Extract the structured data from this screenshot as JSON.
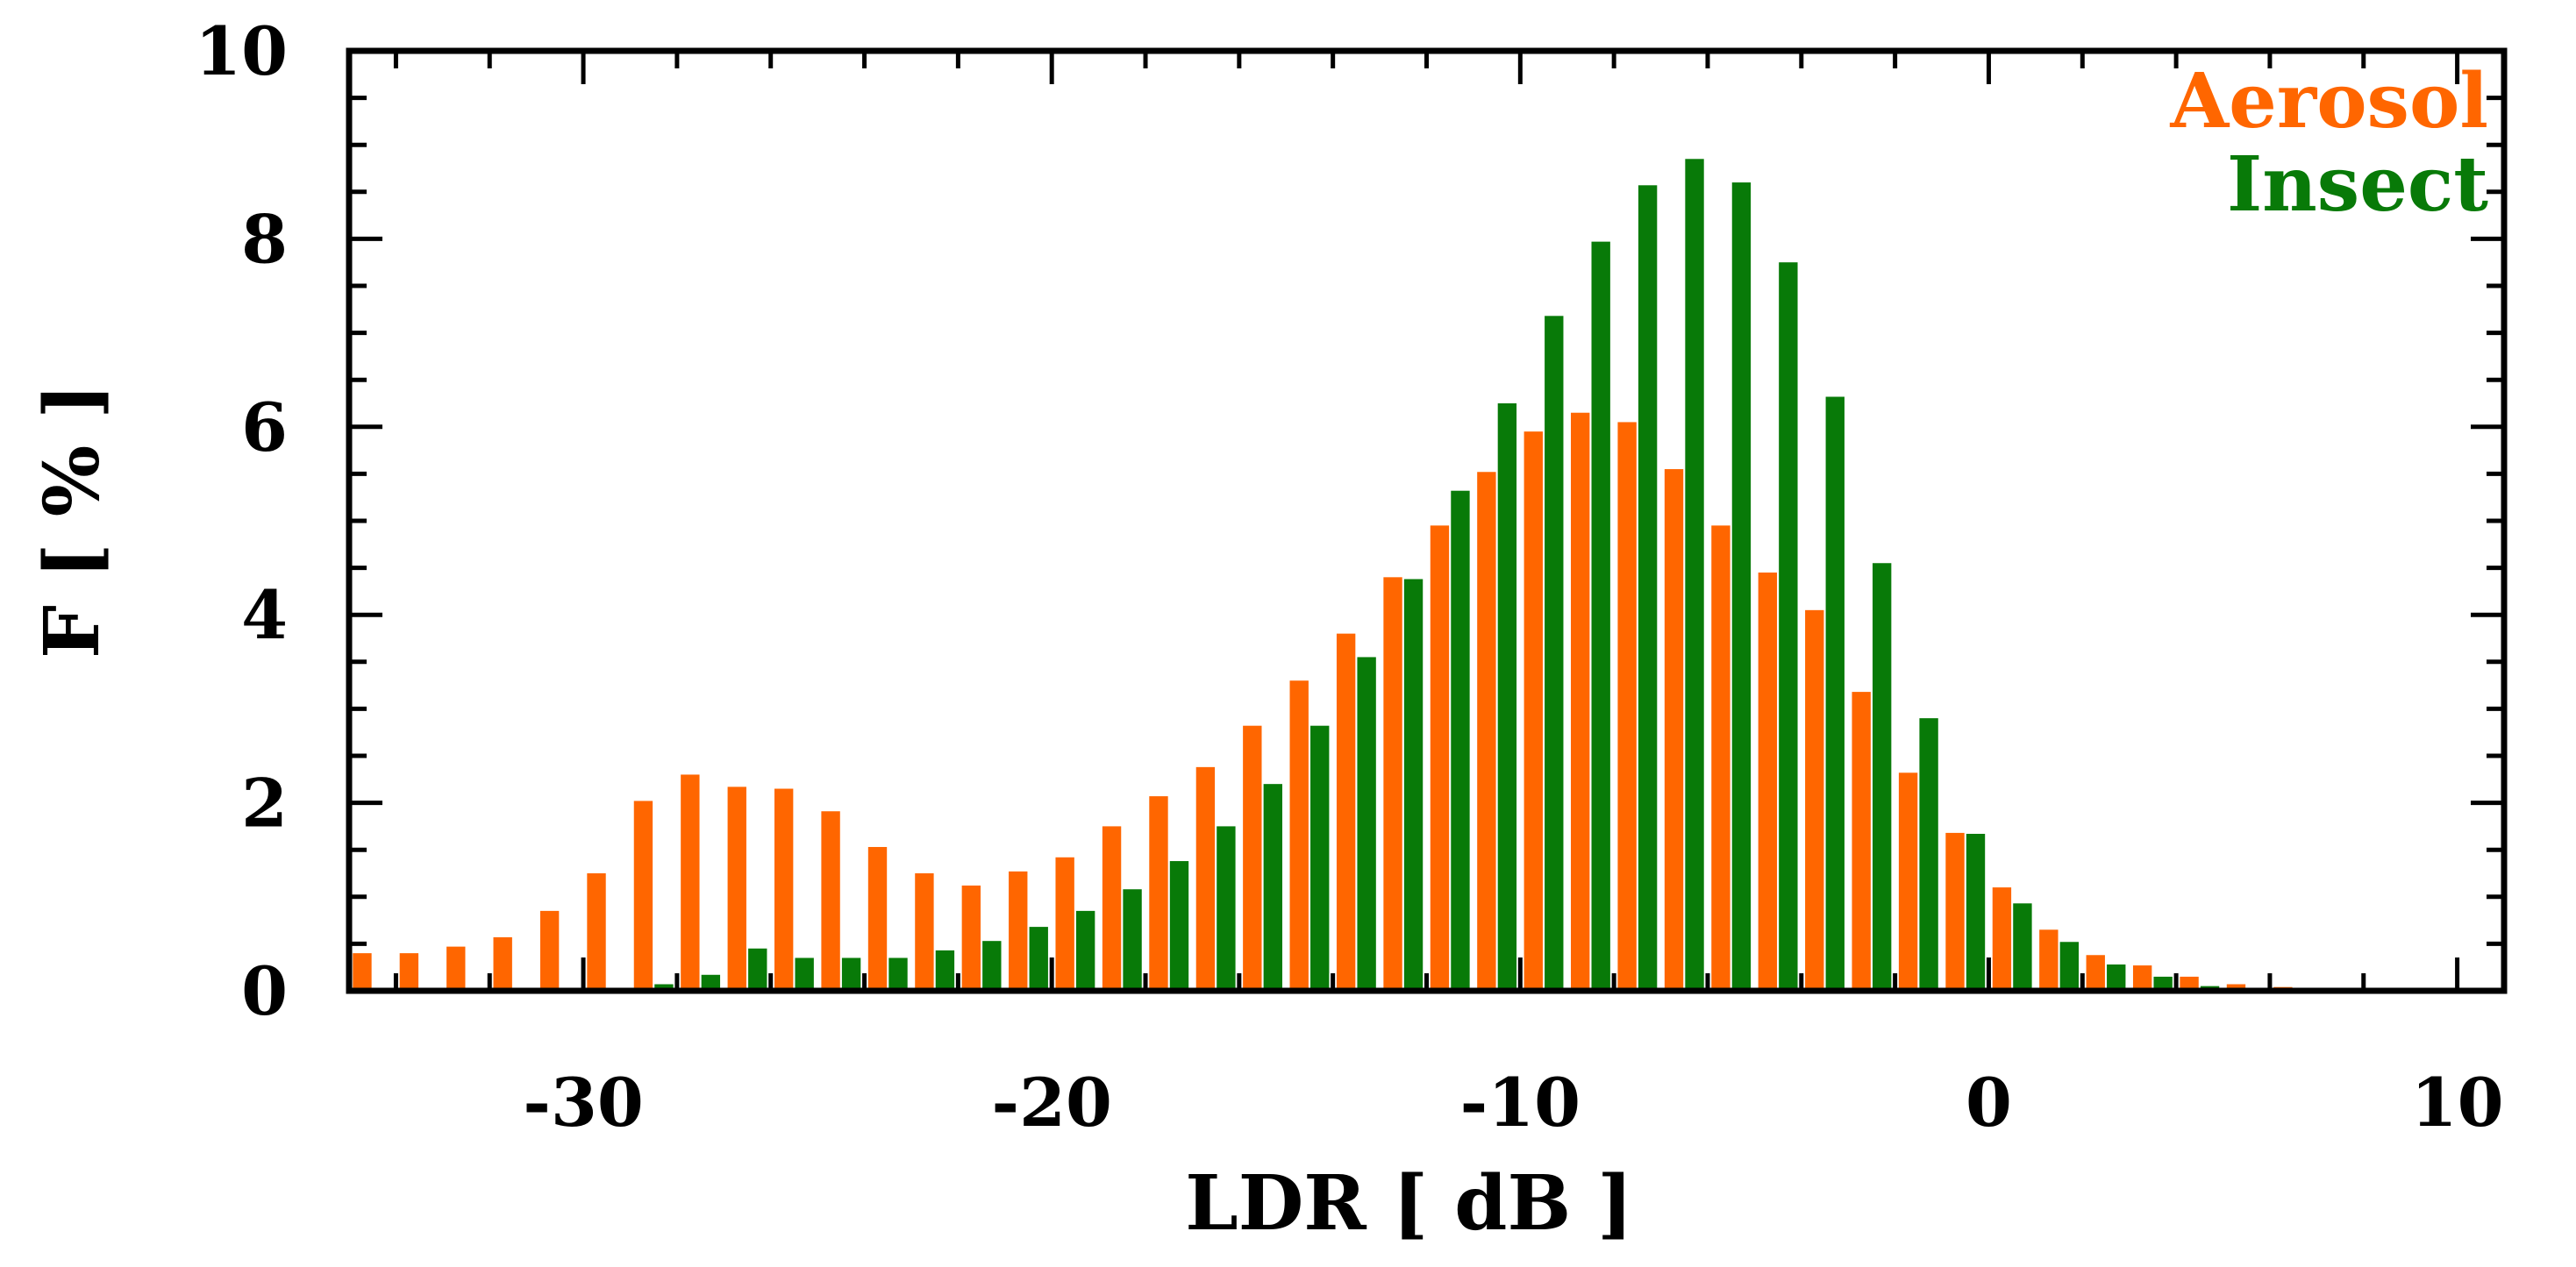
{
  "chart_data": {
    "type": "bar",
    "xlabel": "LDR [ dB ]",
    "ylabel": "F [ % ]",
    "xlim": [
      -35,
      11
    ],
    "ylim": [
      0,
      10
    ],
    "xticks": [
      -30,
      -20,
      -10,
      0,
      10
    ],
    "yticks": [
      0,
      2,
      4,
      6,
      8,
      10
    ],
    "x": [
      -35,
      -34,
      -33,
      -32,
      -31,
      -30,
      -29,
      -28,
      -27,
      -26,
      -25,
      -24,
      -23,
      -22,
      -21,
      -20,
      -19,
      -18,
      -17,
      -16,
      -15,
      -14,
      -13,
      -12,
      -11,
      -10,
      -9,
      -8,
      -7,
      -6,
      -5,
      -4,
      -3,
      -2,
      -1,
      0,
      1,
      2,
      3,
      4,
      5,
      6,
      7,
      8,
      9,
      10
    ],
    "series": [
      {
        "name": "Aerosol",
        "color": "#ff6600",
        "values": [
          0.4,
          0.4,
          0.47,
          0.57,
          0.85,
          1.25,
          2.02,
          2.3,
          2.17,
          2.15,
          1.91,
          1.53,
          1.25,
          1.12,
          1.27,
          1.42,
          1.75,
          2.07,
          2.38,
          2.82,
          3.3,
          3.8,
          4.4,
          4.95,
          5.52,
          5.95,
          6.15,
          6.05,
          5.55,
          4.95,
          4.45,
          4.05,
          3.18,
          2.32,
          1.68,
          1.1,
          0.65,
          0.38,
          0.27,
          0.15,
          0.07,
          0.04,
          0.02,
          0.02,
          0.01,
          0.0
        ]
      },
      {
        "name": "Insect",
        "color": "#087a08",
        "values": [
          0.0,
          0.0,
          0.0,
          0.0,
          0.0,
          0.03,
          0.07,
          0.17,
          0.45,
          0.35,
          0.35,
          0.35,
          0.43,
          0.53,
          0.68,
          0.85,
          1.08,
          1.38,
          1.75,
          2.2,
          2.82,
          3.55,
          4.38,
          5.32,
          6.25,
          7.18,
          7.97,
          8.57,
          8.85,
          8.6,
          7.75,
          6.32,
          4.55,
          2.9,
          1.67,
          0.93,
          0.52,
          0.28,
          0.15,
          0.05,
          0.02,
          0.01,
          0.0,
          0.0,
          0.0,
          0.0
        ]
      }
    ],
    "legend_position": "top-right"
  }
}
